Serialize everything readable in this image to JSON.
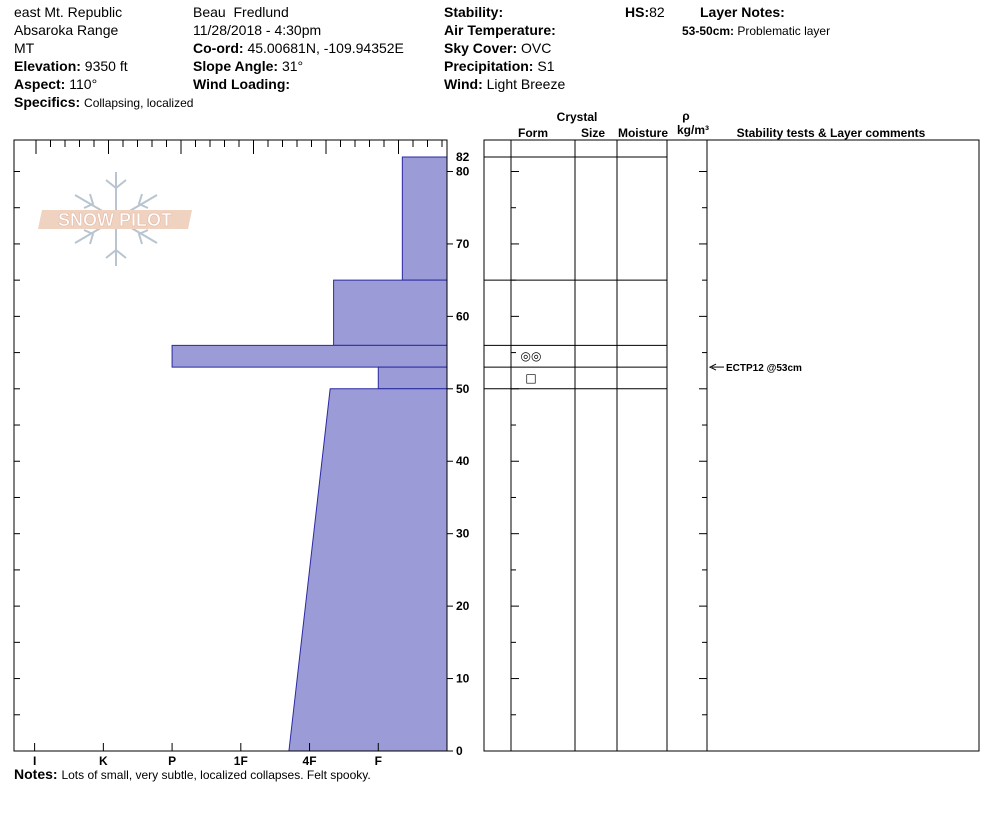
{
  "header": {
    "location": "east Mt. Republic",
    "range": "Absaroka Range",
    "state": "MT",
    "elevation_label": "Elevation:",
    "elevation_value": "9350 ft",
    "aspect_label": "Aspect:",
    "aspect_value": "110°",
    "specifics_label": "Specifics:",
    "specifics_value": "Collapsing, localized",
    "observer": "Beau  Fredlund",
    "datetime": "11/28/2018 - 4:30pm",
    "coord_label": "Co-ord:",
    "coord_value": "45.00681N, -109.94352E",
    "slope_label": "Slope Angle:",
    "slope_value": "31°",
    "wind_loading_label": "Wind Loading:",
    "wind_loading_value": "",
    "stability_label": "Stability:",
    "stability_value": "",
    "air_temp_label": "Air Temperature:",
    "air_temp_value": "",
    "sky_label": "Sky Cover:",
    "sky_value": "OVC",
    "precip_label": "Precipitation:",
    "precip_value": "S1",
    "wind_label": "Wind:",
    "wind_value": "Light Breeze",
    "hs_label": "HS:",
    "hs_value": "82",
    "layer_notes_label": "Layer Notes:",
    "layer_note_range": "53-50cm:",
    "layer_note_text": "Problematic layer"
  },
  "logo": {
    "text": "SNOW PILOT"
  },
  "notes": {
    "label": "Notes:",
    "text": "Lots of small, very subtle, localized collapses.  Felt spooky."
  },
  "columns": {
    "crystal": "Crystal",
    "form": "Form",
    "size": "Size",
    "moisture": "Moisture",
    "rho": "ρ",
    "density_unit": "kg/m³",
    "stability_comments": "Stability tests & Layer comments"
  },
  "chart_data": {
    "type": "bar",
    "orientation": "horizontal",
    "depth_ticks": [
      0,
      10,
      20,
      30,
      40,
      50,
      60,
      70,
      80
    ],
    "hs": 82,
    "hs_label": "82",
    "hardness_scale": [
      "I",
      "K",
      "P",
      "1F",
      "4F",
      "F"
    ],
    "hardness_ticks": [
      {
        "label": "I",
        "value": 0.3
      },
      {
        "label": "K",
        "value": 1.3
      },
      {
        "label": "P",
        "value": 2.3
      },
      {
        "label": "1F",
        "value": 3.3
      },
      {
        "label": "4F",
        "value": 4.3
      },
      {
        "label": "F",
        "value": 5.3
      }
    ],
    "hardness_max": 6.3,
    "layers": [
      {
        "top": 82,
        "bottom": 65,
        "hardness_top": 0.65,
        "hardness_bottom": 0.65
      },
      {
        "top": 65,
        "bottom": 56,
        "hardness_top": 1.65,
        "hardness_bottom": 1.65
      },
      {
        "top": 56,
        "bottom": 53,
        "hardness_top": 4.0,
        "hardness_bottom": 4.0
      },
      {
        "top": 53,
        "bottom": 50,
        "hardness_top": 1.0,
        "hardness_bottom": 1.0
      },
      {
        "top": 50,
        "bottom": 0,
        "hardness_top": 1.7,
        "hardness_bottom": 2.3
      }
    ],
    "layer_boundaries": [
      82,
      65,
      56,
      53,
      50
    ],
    "grain_forms": [
      {
        "depth": 54.5,
        "symbol": "◎◎"
      },
      {
        "depth": 51.5,
        "symbol": "□"
      }
    ],
    "stability_tests": [
      {
        "depth": 53,
        "label": "ECTP12 @53cm"
      }
    ]
  }
}
